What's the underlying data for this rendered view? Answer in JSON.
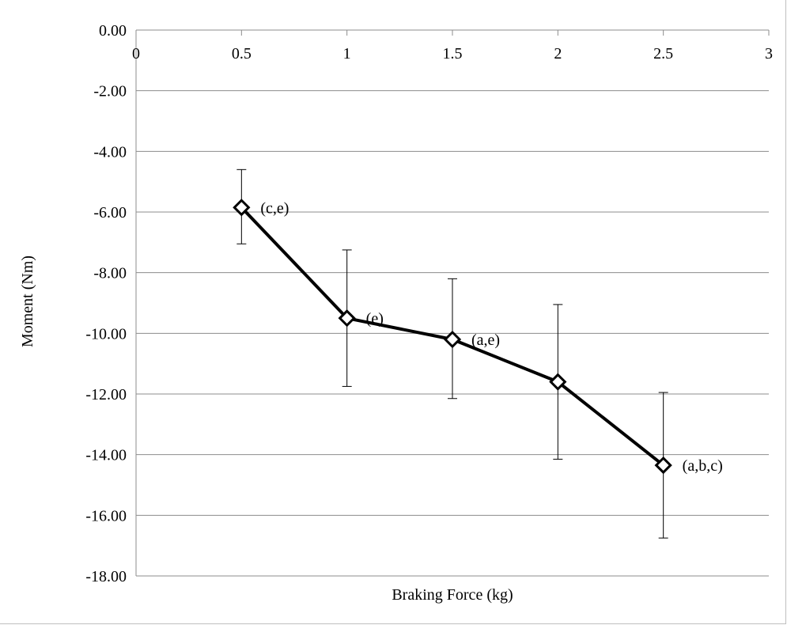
{
  "chart_data": {
    "type": "line",
    "title": "",
    "xlabel": "Braking Force (kg)",
    "ylabel": "Moment (Nm)",
    "xlim": [
      0,
      3
    ],
    "ylim": [
      -18,
      0
    ],
    "x_ticks": [
      {
        "value": 0,
        "label": "0"
      },
      {
        "value": 0.5,
        "label": "0.5"
      },
      {
        "value": 1,
        "label": "1"
      },
      {
        "value": 1.5,
        "label": "1.5"
      },
      {
        "value": 2,
        "label": "2"
      },
      {
        "value": 2.5,
        "label": "2.5"
      },
      {
        "value": 3,
        "label": "3"
      }
    ],
    "y_ticks": [
      {
        "value": 0,
        "label": "0.00"
      },
      {
        "value": -2,
        "label": "-2.00"
      },
      {
        "value": -4,
        "label": "-4.00"
      },
      {
        "value": -6,
        "label": "-6.00"
      },
      {
        "value": -8,
        "label": "-8.00"
      },
      {
        "value": -10,
        "label": "-10.00"
      },
      {
        "value": -12,
        "label": "-12.00"
      },
      {
        "value": -14,
        "label": "-14.00"
      },
      {
        "value": -16,
        "label": "-16.00"
      },
      {
        "value": -18,
        "label": "-18.00"
      }
    ],
    "grid": "horizontal major gridlines",
    "legend": "none",
    "series": [
      {
        "marker": "hollow-diamond",
        "color": "#000000",
        "points": [
          {
            "x": 0.5,
            "y": -5.85,
            "err_low": -7.05,
            "err_high": -4.6,
            "label": "(c,e)"
          },
          {
            "x": 1,
            "y": -9.5,
            "err_low": -11.75,
            "err_high": -7.25,
            "label": "(e)"
          },
          {
            "x": 1.5,
            "y": -10.2,
            "err_low": -12.15,
            "err_high": -8.2,
            "label": "(a,e)"
          },
          {
            "x": 2,
            "y": -11.6,
            "err_low": -14.15,
            "err_high": -9.05,
            "label": ""
          },
          {
            "x": 2.5,
            "y": -14.35,
            "err_low": -16.75,
            "err_high": -11.95,
            "label": "(a,b,c)"
          }
        ]
      }
    ]
  }
}
